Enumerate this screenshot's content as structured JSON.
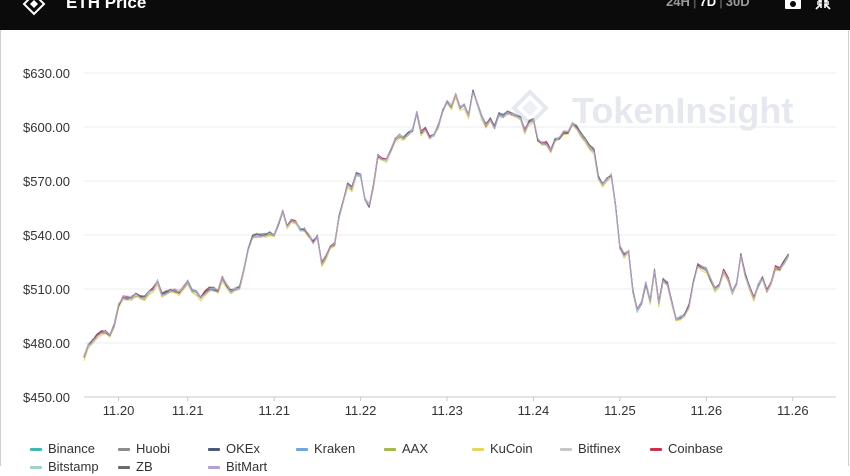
{
  "header": {
    "title": "ETH Price",
    "ranges": [
      {
        "label": "24H",
        "active": false
      },
      {
        "label": "7D",
        "active": true
      },
      {
        "label": "30D",
        "active": false
      }
    ],
    "icons": [
      "camera-icon",
      "collapse-icon"
    ]
  },
  "watermark": "TokenInsight",
  "chart_data": {
    "type": "line",
    "title": "ETH Price",
    "xlabel": "",
    "ylabel": "",
    "ylim": [
      450,
      640
    ],
    "y_ticks": [
      450,
      480,
      510,
      540,
      570,
      600,
      630
    ],
    "y_tick_labels": [
      "$450.00",
      "$480.00",
      "$510.00",
      "$540.00",
      "$570.00",
      "$600.00",
      "$630.00"
    ],
    "x_range": [
      0,
      174
    ],
    "x_ticks": [
      {
        "x": 8,
        "label": "11.20"
      },
      {
        "x": 24,
        "label": "11.21"
      },
      {
        "x": 44,
        "label": "11.21"
      },
      {
        "x": 64,
        "label": "11.22"
      },
      {
        "x": 84,
        "label": "11.23"
      },
      {
        "x": 104,
        "label": "11.24"
      },
      {
        "x": 124,
        "label": "11.25"
      },
      {
        "x": 144,
        "label": "11.26"
      },
      {
        "x": 164,
        "label": "11.26"
      }
    ],
    "grid": true,
    "legend_position": "bottom",
    "colors": {
      "axis": "#c8c8c8",
      "grid": "#ececec",
      "text": "#333333",
      "watermark": "#e6e8f0",
      "topbar": "#0b0b0b"
    },
    "base_series": [
      472,
      479,
      481,
      484,
      486,
      486,
      484,
      490,
      501,
      505,
      505,
      505,
      507,
      506,
      505,
      508,
      510,
      514,
      507,
      508,
      509,
      509,
      508,
      511,
      514,
      509,
      508,
      505,
      508,
      510,
      510,
      509,
      516,
      512,
      509,
      510,
      511,
      521,
      532,
      539,
      540,
      540,
      540,
      541,
      540,
      546,
      553,
      545,
      548,
      547,
      543,
      543,
      540,
      536,
      539,
      524,
      528,
      533,
      535,
      550,
      559,
      568,
      566,
      574,
      573,
      560,
      556,
      568,
      584,
      582,
      582,
      587,
      593,
      595,
      594,
      596,
      598,
      608,
      597,
      599,
      594,
      596,
      601,
      609,
      614,
      611,
      618,
      611,
      612,
      606,
      620,
      613,
      606,
      601,
      604,
      600,
      607,
      606,
      608,
      607,
      606,
      605,
      598,
      603,
      604,
      593,
      591,
      591,
      587,
      593,
      594,
      597,
      597,
      602,
      600,
      596,
      593,
      589,
      587,
      572,
      568,
      571,
      573,
      556,
      533,
      529,
      531,
      509,
      498,
      502,
      513,
      503,
      520,
      502,
      515,
      513,
      503,
      493,
      494,
      496,
      501,
      514,
      523,
      522,
      521,
      515,
      510,
      512,
      520,
      516,
      508,
      513,
      529,
      518,
      511,
      505,
      512,
      516,
      509,
      514,
      522,
      521,
      525,
      529
    ],
    "series": [
      {
        "name": "Binance",
        "color": "#3fb8b0",
        "offset": 0.0,
        "seed": 1
      },
      {
        "name": "Huobi",
        "color": "#8c8c8c",
        "offset": 0.4,
        "seed": 2
      },
      {
        "name": "OKEx",
        "color": "#4a5a7a",
        "offset": -0.2,
        "seed": 3
      },
      {
        "name": "Kraken",
        "color": "#6fa8dc",
        "offset": 0.3,
        "seed": 4
      },
      {
        "name": "AAX",
        "color": "#a9b84a",
        "offset": -0.5,
        "seed": 5
      },
      {
        "name": "KuCoin",
        "color": "#e8d65a",
        "offset": -1.2,
        "seed": 6
      },
      {
        "name": "Bitfinex",
        "color": "#c7c7c7",
        "offset": 0.6,
        "seed": 7
      },
      {
        "name": "Coinbase",
        "color": "#c8324a",
        "offset": 0.2,
        "seed": 8
      },
      {
        "name": "Bitstamp",
        "color": "#9fd3c8",
        "offset": -0.3,
        "seed": 9
      },
      {
        "name": "ZB",
        "color": "#6b6b6b",
        "offset": 0.1,
        "seed": 10
      },
      {
        "name": "BitMart",
        "color": "#b39ddb",
        "offset": -0.1,
        "seed": 11
      }
    ]
  }
}
